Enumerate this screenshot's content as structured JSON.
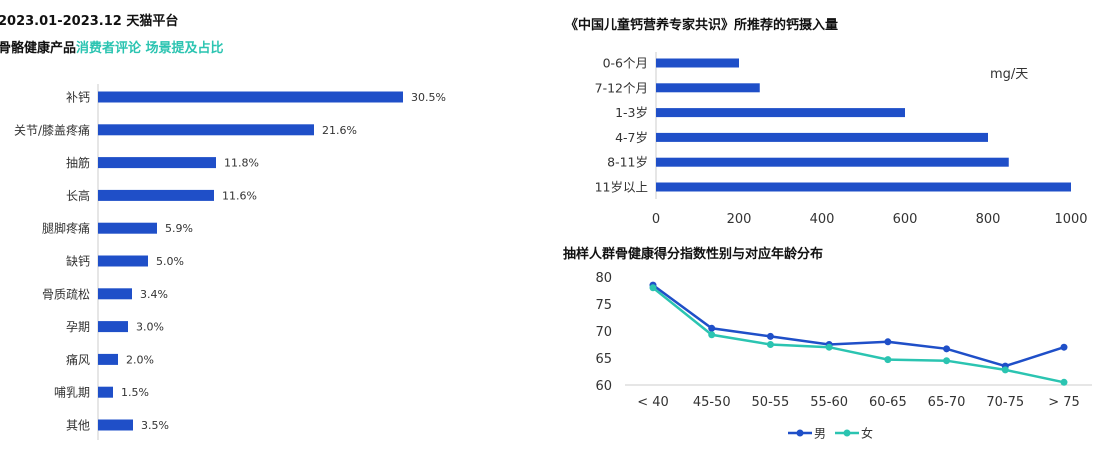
{
  "left": {
    "title_line1": "2023.01-2023.12 天猫平台",
    "title_line2_prefix": "骨骼健康产品",
    "title_line2_highlight": "消费者评论 场景提及占比"
  },
  "top_right": {
    "title": "《中国儿童钙营养专家共识》所推荐的钙摄入量",
    "unit": "mg/天"
  },
  "bottom_right": {
    "title": "抽样人群骨健康得分指数性别与对应年龄分布"
  },
  "colors": {
    "blue": "#1f4fc8",
    "teal": "#2bc4b1",
    "axis": "#cccccc"
  },
  "chart_data": [
    {
      "type": "bar",
      "orientation": "horizontal",
      "categories": [
        "补钙",
        "关节/膝盖疼痛",
        "抽筋",
        "长高",
        "腿脚疼痛",
        "缺钙",
        "骨质疏松",
        "孕期",
        "痛风",
        "哺乳期",
        "其他"
      ],
      "values": [
        30.5,
        21.6,
        11.8,
        11.6,
        5.9,
        5.0,
        3.4,
        3.0,
        2.0,
        1.5,
        3.5
      ],
      "value_labels": [
        "30.5%",
        "21.6%",
        "11.8%",
        "11.6%",
        "5.9%",
        "5.0%",
        "3.4%",
        "3.0%",
        "2.0%",
        "1.5%",
        "3.5%"
      ],
      "xlim": [
        0,
        30.5
      ]
    },
    {
      "type": "bar",
      "orientation": "horizontal",
      "categories": [
        "0-6个月",
        "7-12个月",
        "1-3岁",
        "4-7岁",
        "8-11岁",
        "11岁以上"
      ],
      "values": [
        200,
        250,
        600,
        800,
        850,
        1000
      ],
      "xlim": [
        0,
        1000
      ],
      "xticks": [
        "0",
        "200",
        "400",
        "600",
        "800",
        "1000"
      ]
    },
    {
      "type": "line",
      "categories": [
        "< 40",
        "45-50",
        "50-55",
        "55-60",
        "60-65",
        "65-70",
        "70-75",
        "> 75"
      ],
      "series": [
        {
          "name": "男",
          "values": [
            78.5,
            70.5,
            69.0,
            67.5,
            68.0,
            66.7,
            63.5,
            67.0
          ]
        },
        {
          "name": "女",
          "values": [
            78.0,
            69.3,
            67.5,
            67.0,
            64.7,
            64.5,
            62.8,
            60.5
          ]
        }
      ],
      "ylim": [
        60,
        80
      ],
      "yticks": [
        "60",
        "65",
        "70",
        "75",
        "80"
      ],
      "legend_position": "bottom"
    }
  ]
}
